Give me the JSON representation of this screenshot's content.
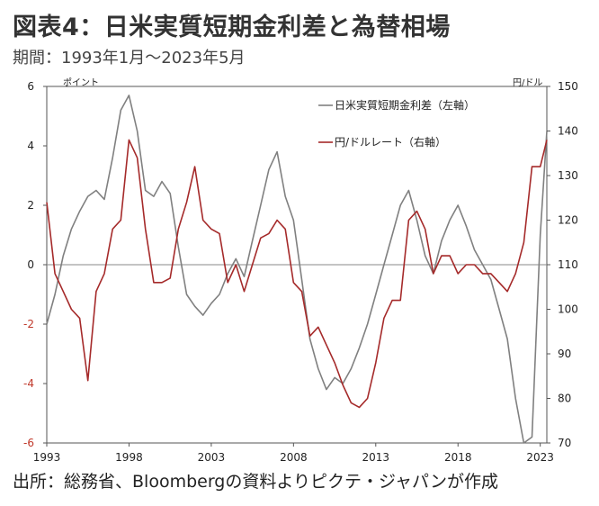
{
  "title": "図表4：日米実質短期金利差と為替相場",
  "subtitle": "期間：1993年1月～2023年5月",
  "source": "出所：総務省、Bloombergの資料よりピクテ・ジャパンが作成",
  "chart_data": {
    "type": "line",
    "left_axis_unit": "ポイント",
    "right_axis_unit": "円/ドル",
    "ylim_left": [
      -6,
      6
    ],
    "ylim_right": [
      70,
      150
    ],
    "yticks_left": [
      6,
      4,
      2,
      0,
      -2,
      -4,
      -6
    ],
    "yticks_right": [
      150,
      140,
      130,
      120,
      110,
      100,
      90,
      80,
      70
    ],
    "xlim": [
      1993,
      2023.4
    ],
    "xticks": [
      1993,
      1998,
      2003,
      2008,
      2013,
      2018,
      2023
    ],
    "zero_line": true,
    "legend_position": "top-right",
    "colors": {
      "spread": "#808080",
      "usdjpy": "#a52a2a",
      "negative_ticks": "#c0392b"
    },
    "series": [
      {
        "name": "日米実質短期金利差（左軸）",
        "axis": "left",
        "x": [
          1993.0,
          1993.5,
          1994.0,
          1994.5,
          1995.0,
          1995.5,
          1996.0,
          1996.5,
          1997.0,
          1997.5,
          1998.0,
          1998.5,
          1999.0,
          1999.5,
          2000.0,
          2000.5,
          2001.0,
          2001.5,
          2002.0,
          2002.5,
          2003.0,
          2003.5,
          2004.0,
          2004.5,
          2005.0,
          2005.5,
          2006.0,
          2006.5,
          2007.0,
          2007.5,
          2008.0,
          2008.5,
          2009.0,
          2009.5,
          2010.0,
          2010.5,
          2011.0,
          2011.5,
          2012.0,
          2012.5,
          2013.0,
          2013.5,
          2014.0,
          2014.5,
          2015.0,
          2015.5,
          2016.0,
          2016.5,
          2017.0,
          2017.5,
          2018.0,
          2018.5,
          2019.0,
          2019.5,
          2020.0,
          2020.5,
          2021.0,
          2021.5,
          2022.0,
          2022.5,
          2023.0,
          2023.4
        ],
        "values": [
          -2.0,
          -1.0,
          0.3,
          1.2,
          1.8,
          2.3,
          2.5,
          2.2,
          3.6,
          5.2,
          5.7,
          4.5,
          2.5,
          2.3,
          2.8,
          2.4,
          0.6,
          -1.0,
          -1.4,
          -1.7,
          -1.3,
          -1.0,
          -0.3,
          0.2,
          -0.4,
          0.8,
          2.0,
          3.2,
          3.8,
          2.3,
          1.5,
          -0.5,
          -2.5,
          -3.5,
          -4.2,
          -3.8,
          -4.0,
          -3.5,
          -2.8,
          -2.0,
          -1.0,
          0.0,
          1.0,
          2.0,
          2.5,
          1.5,
          0.3,
          -0.3,
          0.8,
          1.5,
          2.0,
          1.3,
          0.5,
          0.0,
          -0.5,
          -1.5,
          -2.5,
          -4.5,
          -6.0,
          -5.8,
          1.0,
          4.5
        ]
      },
      {
        "name": "円/ドルレート（右軸）",
        "axis": "right",
        "x": [
          1993.0,
          1993.5,
          1994.0,
          1994.5,
          1995.0,
          1995.5,
          1996.0,
          1996.5,
          1997.0,
          1997.5,
          1998.0,
          1998.5,
          1999.0,
          1999.5,
          2000.0,
          2000.5,
          2001.0,
          2001.5,
          2002.0,
          2002.5,
          2003.0,
          2003.5,
          2004.0,
          2004.5,
          2005.0,
          2005.5,
          2006.0,
          2006.5,
          2007.0,
          2007.5,
          2008.0,
          2008.5,
          2009.0,
          2009.5,
          2010.0,
          2010.5,
          2011.0,
          2011.5,
          2012.0,
          2012.5,
          2013.0,
          2013.5,
          2014.0,
          2014.5,
          2015.0,
          2015.5,
          2016.0,
          2016.5,
          2017.0,
          2017.5,
          2018.0,
          2018.5,
          2019.0,
          2019.5,
          2020.0,
          2020.5,
          2021.0,
          2021.5,
          2022.0,
          2022.5,
          2023.0,
          2023.4
        ],
        "values": [
          124,
          108,
          104,
          100,
          98,
          84,
          104,
          108,
          118,
          120,
          138,
          134,
          118,
          106,
          106,
          107,
          118,
          124,
          132,
          120,
          118,
          117,
          106,
          110,
          104,
          110,
          116,
          117,
          120,
          118,
          106,
          104,
          94,
          96,
          92,
          88,
          83,
          79,
          78,
          80,
          88,
          98,
          102,
          102,
          120,
          122,
          118,
          108,
          112,
          112,
          108,
          110,
          110,
          108,
          108,
          106,
          104,
          108,
          115,
          132,
          132,
          138
        ]
      }
    ]
  }
}
